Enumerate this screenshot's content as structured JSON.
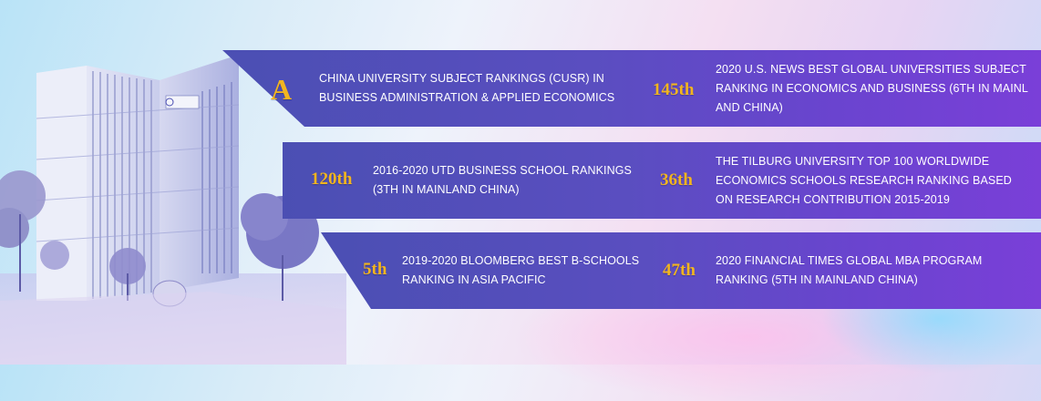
{
  "rankings": [
    {
      "rank": "A",
      "description": "CHINA UNIVERSITY SUBJECT RANKINGS (CUSR) IN BUSINESS ADMINISTRATION & APPLIED ECONOMICS"
    },
    {
      "rank": "145th",
      "description": "2020 U.S. NEWS BEST GLOBAL UNIVERSITIES SUBJECT RANKING IN ECONOMICS AND BUSINESS (6TH IN MAINL AND CHINA)"
    },
    {
      "rank": "120th",
      "description": "2016-2020 UTD BUSINESS SCHOOL RANKINGS (3TH IN MAINLAND CHINA)"
    },
    {
      "rank": "36th",
      "description": "THE TILBURG UNIVERSITY TOP 100 WORLDWIDE ECONOMICS SCHOOLS RESEARCH RANKING BASED ON RESEARCH CONTRIBUTION 2015-2019"
    },
    {
      "rank": "5th",
      "description": "2019-2020 BLOOMBERG BEST B-SCHOOLS RANKING IN ASIA PACIFIC"
    },
    {
      "rank": "47th",
      "description": "2020 FINANCIAL TIMES GLOBAL MBA PROGRAM RANKING (5TH IN MAINLAND CHINA)"
    }
  ],
  "colors": {
    "band": "#5a4ec0",
    "rank": "#f2b51f",
    "text": "#ffffff"
  },
  "building_icon": "building-illustration"
}
